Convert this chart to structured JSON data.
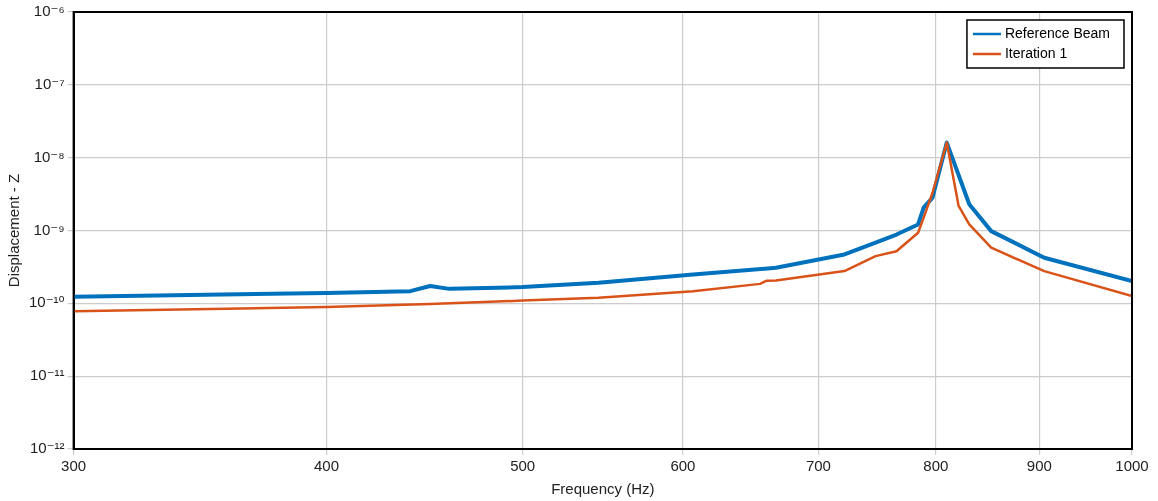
{
  "chart_data": {
    "type": "line",
    "xlabel": "Frequency (Hz)",
    "ylabel": "Displacement - Z",
    "log": "xy",
    "grid": true,
    "legend": "top right",
    "marker": "none",
    "line_style": "solid",
    "xlim": [
      300,
      1000
    ],
    "xticks": [
      300,
      400,
      500,
      600,
      700,
      800,
      900,
      1000
    ],
    "ylim": [
      1e-12,
      1e-06
    ],
    "yticks": [
      {
        "value": 1e-12,
        "label": "10⁻¹²"
      },
      {
        "value": 1e-11,
        "label": "10⁻¹¹"
      },
      {
        "value": 1e-10,
        "label": "10⁻¹⁰"
      },
      {
        "value": 1e-09,
        "label": "10⁻⁹"
      },
      {
        "value": 1e-08,
        "label": "10⁻⁸"
      },
      {
        "value": 1e-07,
        "label": "10⁻⁷"
      },
      {
        "value": 1e-06,
        "label": "10⁻⁶"
      }
    ],
    "series": [
      {
        "name": "Reference Beam",
        "color": "#0072bd",
        "x": [
          300,
          400,
          440,
          450,
          460,
          500,
          545,
          607,
          667,
          721,
          747,
          765,
          784,
          789,
          797,
          810,
          831,
          852,
          905,
          1000
        ],
        "values": [
          1.23e-10,
          1.39e-10,
          1.47e-10,
          1.73e-10,
          1.58e-10,
          1.67e-10,
          1.91e-10,
          2.49e-10,
          3.08e-10,
          4.69e-10,
          6.8e-10,
          8.8e-10,
          1.21e-09,
          2.06e-09,
          2.83e-09,
          1.61e-08,
          2.29e-09,
          9.8e-10,
          4.22e-10,
          2.02e-10
        ]
      },
      {
        "name": "Iteration 1",
        "color": "#d95319",
        "x": [
          300,
          400,
          450,
          500,
          545,
          607,
          655,
          660,
          667,
          721,
          747,
          765,
          784,
          789,
          797,
          810,
          821,
          831,
          852,
          905,
          1000
        ],
        "values": [
          7.8e-11,
          8.9e-11,
          9.8e-11,
          1.09e-10,
          1.19e-10,
          1.47e-10,
          1.85e-10,
          2.05e-10,
          2.06e-10,
          2.77e-10,
          4.45e-10,
          5.2e-10,
          9.3e-10,
          1.5e-09,
          3.3e-09,
          1.61e-08,
          2.17e-09,
          1.21e-09,
          5.8e-10,
          2.77e-10,
          1.26e-10
        ]
      }
    ]
  }
}
